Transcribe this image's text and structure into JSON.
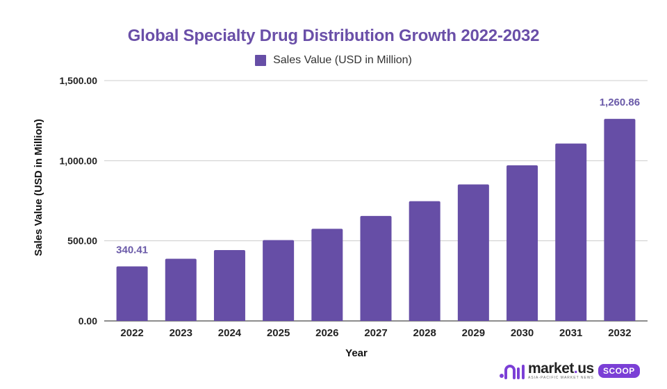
{
  "chart_data": {
    "type": "bar",
    "title": "Global Specialty Drug Distribution Growth 2022-2032",
    "xlabel": "Year",
    "ylabel": "Sales Value (USD in Million)",
    "legend": {
      "position": "top-center",
      "entries": [
        "Sales Value (USD in Million)"
      ]
    },
    "categories": [
      "2022",
      "2023",
      "2024",
      "2025",
      "2026",
      "2027",
      "2028",
      "2029",
      "2030",
      "2031",
      "2032"
    ],
    "series": [
      {
        "name": "Sales Value (USD in Million)",
        "color": "#664ea6",
        "values": [
          340.41,
          388.07,
          442.4,
          504.33,
          574.94,
          655.43,
          747.19,
          851.8,
          971.05,
          1107.0,
          1260.86
        ]
      }
    ],
    "ylim": [
      0,
      1500
    ],
    "yticks": [
      0,
      500,
      1000,
      1500
    ],
    "ytick_labels": [
      "0.00",
      "500.00",
      "1,000.00",
      "1,500.00"
    ],
    "grid": true,
    "data_labels": [
      {
        "index": 0,
        "text": "340.41"
      },
      {
        "index": 10,
        "text": "1,260.86"
      }
    ]
  },
  "colors": {
    "bar": "#664ea6",
    "title": "#6a4fa8",
    "data_label": "#6a5aa8",
    "brand": "#7b3fd6"
  },
  "branding": {
    "name_main": "market",
    "name_dot": ".",
    "name_tld": "us",
    "tagline": "ASIA-PACIFIC MARKET NEWS",
    "badge": "SCOOP"
  }
}
